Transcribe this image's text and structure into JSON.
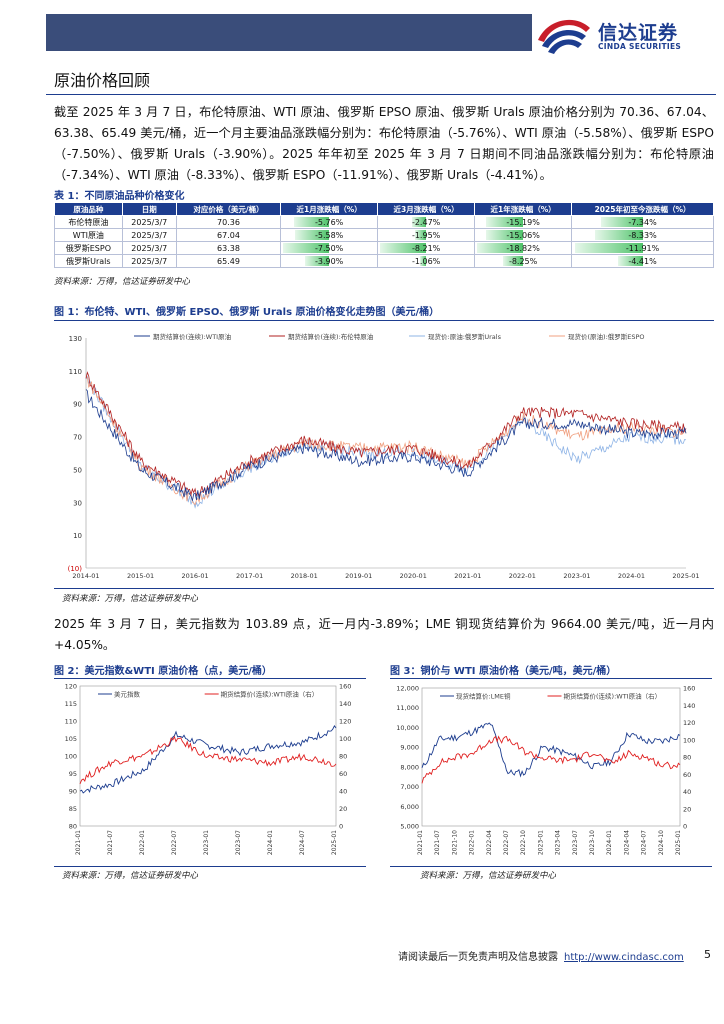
{
  "logo": {
    "cn": "信达证券",
    "en": "CINDA SECURITIES"
  },
  "section_title": "原油价格回顾",
  "para1": "截至 2025 年 3 月 7 日，布伦特原油、WTI 原油、俄罗斯 EPSO 原油、俄罗斯 Urals 原油价格分别为 70.36、67.04、63.38、65.49 美元/桶，近一个月主要油品涨跌幅分别为：布伦特原油（-5.76%）、WTI 原油（-5.58%）、俄罗斯 ESPO（-7.50%）、俄罗斯 Urals（-3.90%）。2025 年年初至 2025 年 3 月 7 日期间不同油品涨跌幅分别为：布伦特原油（-7.34%）、WTI 原油（-8.33%）、俄罗斯 ESPO（-11.91%）、俄罗斯 Urals（-4.41%）。",
  "table1": {
    "caption": "表 1：不同原油品种价格变化",
    "headers": [
      "原油品种",
      "日期",
      "对应价格（美元/桶）",
      "近1月涨跌幅（%）",
      "近3月涨跌幅（%）",
      "近1年涨跌幅（%）",
      "2025年初至今涨跌幅（%）"
    ],
    "rows": [
      [
        "布伦特原油",
        "2025/3/7",
        "70.36",
        "-5.76%",
        "-2.47%",
        "-15.19%",
        "-7.34%"
      ],
      [
        "WTI原油",
        "2025/3/7",
        "67.04",
        "-5.58%",
        "-1.95%",
        "-15.06%",
        "-8.33%"
      ],
      [
        "俄罗斯ESPO",
        "2025/3/7",
        "63.38",
        "-7.50%",
        "-8.21%",
        "-18.82%",
        "-11.91%"
      ],
      [
        "俄罗斯Urals",
        "2025/3/7",
        "65.49",
        "-3.90%",
        "-1.06%",
        "-8.25%",
        "-4.41%"
      ]
    ],
    "source": "资料来源：万得，信达证券研发中心"
  },
  "fig1": {
    "caption": "图 1：布伦特、WTI、俄罗斯 EPSO、俄罗斯 Urals 原油价格变化走势图（美元/桶）",
    "source": "资料来源：万得，信达证券研发中心",
    "legend": [
      "期货结算价(连续):WTI原油",
      "期货结算价(连续):布伦特原油",
      "现货价:原油:俄罗斯Urals",
      "现货价(原油):俄罗斯ESPO"
    ],
    "colors": [
      "#1d3d8f",
      "#b22222",
      "#8fb4e6",
      "#f0a080"
    ]
  },
  "para2": "2025 年 3 月 7 日，美元指数为 103.89 点，近一月内-3.89%；LME 铜现货结算价为 9664.00 美元/吨，近一月内+4.05%。",
  "fig2": {
    "caption": "图 2：美元指数&WTI 原油价格（点，美元/桶）",
    "legend": [
      "美元指数",
      "期货结算价(连续):WTI原油（右）"
    ],
    "source": "资料来源：万得，信达证券研发中心"
  },
  "fig3": {
    "caption": "图 3：铜价与 WTI 原油价格（美元/吨，美元/桶）",
    "legend": [
      "现货结算价:LME铜",
      "期货结算价(连续):WTI原油（右）"
    ],
    "source": "资料来源：万得，信达证券研发中心"
  },
  "footer": {
    "text": "请阅读最后一页免责声明及信息披露",
    "url": "http://www.cindasc.com",
    "page": "5"
  },
  "chart_data": [
    {
      "type": "line",
      "title": "布伦特、WTI、俄罗斯 EPSO、俄罗斯 Urals 原油价格变化走势图（美元/桶）",
      "x": [
        "2014-01",
        "2015-01",
        "2016-01",
        "2017-01",
        "2018-01",
        "2019-01",
        "2020-01",
        "2021-01",
        "2022-01",
        "2023-01",
        "2024-01",
        "2025-01"
      ],
      "y_ticks": [
        "(10)",
        "10",
        "30",
        "50",
        "70",
        "90",
        "110",
        "130"
      ],
      "ylim": [
        -10,
        130
      ],
      "series": [
        {
          "name": "期货结算价(连续):WTI原油",
          "values": [
            96,
            50,
            33,
            52,
            63,
            55,
            58,
            48,
            78,
            78,
            72,
            72
          ]
        },
        {
          "name": "期货结算价(连续):布伦特原油",
          "values": [
            108,
            55,
            35,
            55,
            68,
            60,
            63,
            52,
            85,
            84,
            78,
            75
          ]
        },
        {
          "name": "现货价:原油:俄罗斯Urals",
          "values": [
            106,
            52,
            30,
            51,
            65,
            60,
            60,
            50,
            80,
            56,
            70,
            68
          ]
        },
        {
          "name": "现货价(原油):俄罗斯ESPO",
          "values": [
            106,
            52,
            31,
            53,
            66,
            63,
            64,
            53,
            82,
            70,
            76,
            72
          ]
        }
      ]
    },
    {
      "type": "line",
      "title": "美元指数&WTI 原油价格（点，美元/桶）",
      "x": [
        "2021-01",
        "2021-07",
        "2022-01",
        "2022-07",
        "2023-01",
        "2023-07",
        "2024-01",
        "2024-07",
        "2025-01"
      ],
      "y_left_ticks": [
        "80",
        "85",
        "90",
        "95",
        "100",
        "105",
        "110",
        "115",
        "120"
      ],
      "y_right_ticks": [
        "0",
        "20",
        "40",
        "60",
        "80",
        "100",
        "120",
        "140",
        "160"
      ],
      "series": [
        {
          "name": "美元指数",
          "axis": "left",
          "values": [
            90,
            92,
            96,
            106,
            103,
            101,
            103,
            104,
            108
          ]
        },
        {
          "name": "期货结算价(连续):WTI原油（右）",
          "axis": "right",
          "values": [
            52,
            73,
            80,
            100,
            79,
            76,
            72,
            80,
            71
          ]
        }
      ]
    },
    {
      "type": "line",
      "title": "铜价与 WTI 原油价格（美元/吨，美元/桶）",
      "x": [
        "2021-01",
        "2021-07",
        "2021-10",
        "2022-01",
        "2022-04",
        "2022-07",
        "2022-10",
        "2023-01",
        "2023-04",
        "2023-07",
        "2023-10",
        "2024-01",
        "2024-04",
        "2024-07",
        "2024-10",
        "2025-01"
      ],
      "y_left_ticks": [
        "5,000",
        "6,000",
        "7,000",
        "8,000",
        "9,000",
        "10,000",
        "11,000",
        "12,000"
      ],
      "y_right_ticks": [
        "0",
        "20",
        "40",
        "60",
        "80",
        "100",
        "120",
        "140",
        "160"
      ],
      "series": [
        {
          "name": "现货结算价:LME铜",
          "axis": "left",
          "values": [
            7900,
            9400,
            9500,
            9800,
            10200,
            7700,
            7700,
            9000,
            8800,
            8500,
            8000,
            8300,
            9700,
            9300,
            9300,
            9600
          ]
        },
        {
          "name": "期货结算价(连续):WTI原油（右）",
          "axis": "right",
          "values": [
            52,
            73,
            80,
            85,
            100,
            100,
            86,
            79,
            76,
            78,
            86,
            72,
            84,
            80,
            70,
            71
          ]
        }
      ]
    }
  ]
}
